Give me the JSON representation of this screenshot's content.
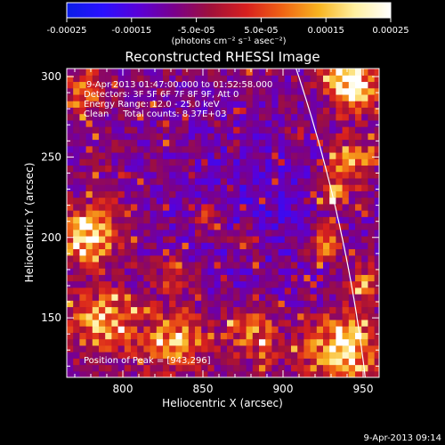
{
  "colorbar": {
    "ticks": [
      -0.00025,
      -0.00015,
      -5e-05,
      5e-05,
      0.00015,
      0.00025
    ],
    "tick_labels": [
      "-0.00025",
      "-0.00015",
      "-5.0e-05",
      "5.0e-05",
      "0.00015",
      "0.00025"
    ],
    "units": "(photons cm⁻² s⁻¹ asec⁻²)",
    "range": [
      -0.00025,
      0.00025
    ],
    "colors": [
      "#0a1ee6",
      "#2a10ff",
      "#5a00d8",
      "#7a008a",
      "#a0103a",
      "#d8201e",
      "#f06414",
      "#f8b420",
      "#fff0a0",
      "#ffffff"
    ]
  },
  "chart_data": {
    "type": "heatmap",
    "title": "Reconstructed RHESSI Image",
    "xlabel": "Heliocentric X (arcsec)",
    "ylabel": "Heliocentric Y (arcsec)",
    "xlim": [
      765,
      960
    ],
    "ylim": [
      113,
      305
    ],
    "xticks": [
      800,
      850,
      900,
      950
    ],
    "yticks": [
      150,
      200,
      250,
      300
    ],
    "info_lines": [
      "9-Apr-2013 01:47:00.000 to 01:52:58.000",
      "Detectors: 3F 5F 6F 7F 8F 9F, Att 0",
      "Energy Range: 12.0 - 25.0 keV",
      "Clean     Total counts: 8.37E+03"
    ],
    "peak_label": "Position of Peak = [943,296]",
    "peak": [
      943,
      296
    ],
    "timestamp": "9-Apr-2013 09:14",
    "limb": {
      "color": "#ffffff"
    },
    "bright_regions": [
      {
        "x": 942,
        "y": 292,
        "intensity": 1.0,
        "radius": 14
      },
      {
        "x": 778,
        "y": 200,
        "intensity": 0.9,
        "radius": 16
      },
      {
        "x": 935,
        "y": 128,
        "intensity": 0.9,
        "radius": 20
      },
      {
        "x": 785,
        "y": 145,
        "intensity": 0.65,
        "radius": 18
      },
      {
        "x": 830,
        "y": 135,
        "intensity": 0.55,
        "radius": 20
      },
      {
        "x": 880,
        "y": 140,
        "intensity": 0.5,
        "radius": 16
      },
      {
        "x": 940,
        "y": 245,
        "intensity": 0.6,
        "radius": 14
      },
      {
        "x": 850,
        "y": 210,
        "intensity": 0.45,
        "radius": 10
      },
      {
        "x": 830,
        "y": 175,
        "intensity": 0.35,
        "radius": 12
      },
      {
        "x": 875,
        "y": 195,
        "intensity": 0.4,
        "radius": 10
      },
      {
        "x": 925,
        "y": 195,
        "intensity": 0.45,
        "radius": 12
      },
      {
        "x": 930,
        "y": 225,
        "intensity": 0.5,
        "radius": 10
      },
      {
        "x": 775,
        "y": 290,
        "intensity": 0.4,
        "radius": 14
      },
      {
        "x": 950,
        "y": 170,
        "intensity": 0.5,
        "radius": 10
      }
    ]
  }
}
